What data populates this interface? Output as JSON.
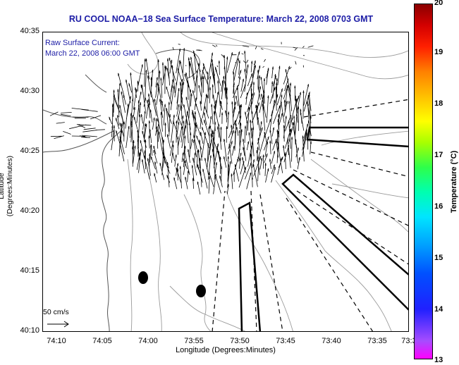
{
  "title": "RU COOL  NOAA−18  Sea Surface Temperature:  March 22, 2008 0703 GMT",
  "legend": {
    "line1": "Raw Surface Current:",
    "line2": "March 22, 2008 06:00 GMT",
    "scale_label": "50 cm/s"
  },
  "axes": {
    "y_label": "Latitude (Degrees:Minutes)",
    "x_label": "Longitude (Degrees:Minutes)",
    "y_ticks": [
      "40:35",
      "40:30",
      "40:25",
      "40:20",
      "40:15",
      "40:10"
    ],
    "x_ticks": [
      "74:10",
      "74:05",
      "74:00",
      "73:55",
      "73:50",
      "73:45",
      "73:40",
      "73:35",
      "73:3"
    ]
  },
  "colorbar": {
    "label": "Temperature (°C)",
    "ticks": [
      "20",
      "19",
      "18",
      "17",
      "16",
      "15",
      "14",
      "13"
    ]
  },
  "colors": {
    "title": "#1d1da6",
    "coast": "#555555",
    "contour": "#9a9a9a",
    "vectors": "#000000"
  }
}
